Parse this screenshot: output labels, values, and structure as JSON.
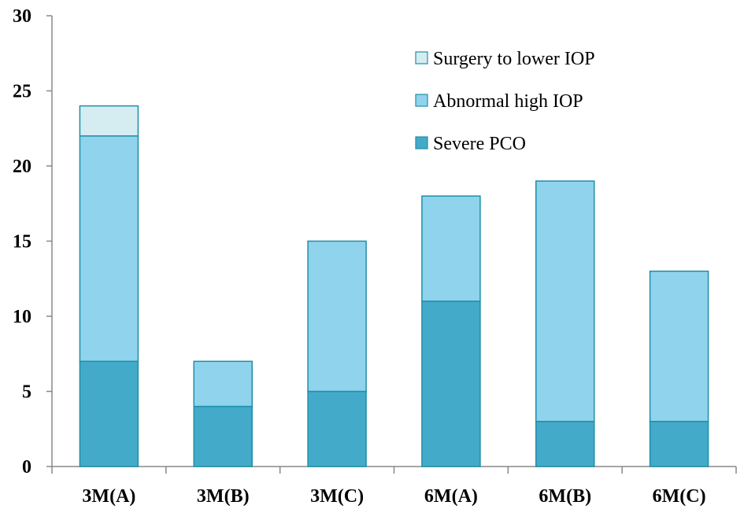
{
  "chart_data": {
    "type": "bar",
    "stacked": true,
    "categories": [
      "3M(A)",
      "3M(B)",
      "3M(C)",
      "6M(A)",
      "6M(B)",
      "6M(C)"
    ],
    "series": [
      {
        "name": "Severe PCO",
        "values": [
          7,
          4,
          5,
          11,
          3,
          3
        ],
        "color": "#44aac9"
      },
      {
        "name": "Abnormal high IOP",
        "values": [
          15,
          3,
          10,
          7,
          16,
          10
        ],
        "color": "#90d3ec"
      },
      {
        "name": "Surgery to lower IOP",
        "values": [
          2,
          0,
          0,
          0,
          0,
          0
        ],
        "color": "#d5ecf1"
      }
    ],
    "stroke_color": "#1f8fa8",
    "ylim": [
      0,
      30
    ],
    "yticks": [
      0,
      5,
      10,
      15,
      20,
      25,
      30
    ],
    "grid": false,
    "legend": {
      "placement": "top-right",
      "order": [
        "Surgery to lower IOP",
        "Abnormal high IOP",
        "Severe PCO"
      ]
    }
  }
}
